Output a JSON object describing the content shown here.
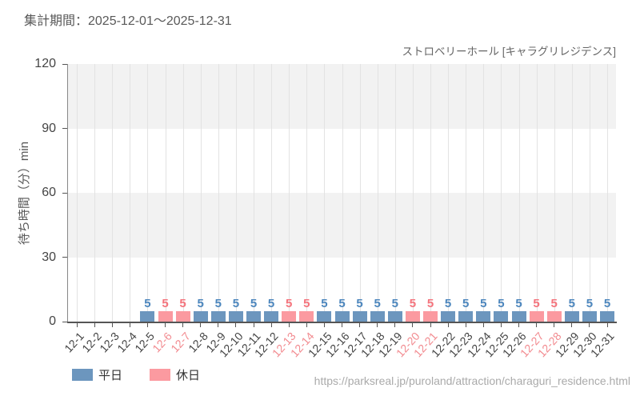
{
  "header": {
    "title": "集計期間：2025-12-01～2025-12-31"
  },
  "chart": {
    "subtitle": "ストロベリーホール [キャラグリレジデンス]",
    "ylabel": "待ち時間（分）min"
  },
  "legend": [
    {
      "label": "平日",
      "type": "weekday"
    },
    {
      "label": "休日",
      "type": "weekend"
    }
  ],
  "footer": {
    "url": "https://parksreal.jp/puroland/attraction/charaguri_residence.html"
  },
  "chart_data": {
    "type": "bar",
    "title": "ストロベリーホール [キャラグリレジデンス]",
    "xlabel": "",
    "ylabel": "待ち時間（分）min",
    "ylim": [
      0,
      120
    ],
    "yticks": [
      0,
      30,
      60,
      90,
      120
    ],
    "grid": "vertical-lines with alternating horizontal gray bands",
    "legend_position": "bottom-left",
    "categories": [
      "12-1",
      "12-2",
      "12-3",
      "12-4",
      "12-5",
      "12-6",
      "12-7",
      "12-8",
      "12-9",
      "12-10",
      "12-11",
      "12-12",
      "12-13",
      "12-14",
      "12-15",
      "12-16",
      "12-17",
      "12-18",
      "12-19",
      "12-20",
      "12-21",
      "12-22",
      "12-23",
      "12-24",
      "12-25",
      "12-26",
      "12-27",
      "12-28",
      "12-29",
      "12-30",
      "12-31"
    ],
    "values": [
      null,
      null,
      null,
      null,
      5,
      5,
      5,
      5,
      5,
      5,
      5,
      5,
      5,
      5,
      5,
      5,
      5,
      5,
      5,
      5,
      5,
      5,
      5,
      5,
      5,
      5,
      5,
      5,
      5,
      5,
      5
    ],
    "day_types": [
      "weekday",
      "weekday",
      "weekday",
      "weekday",
      "weekday",
      "weekend",
      "weekend",
      "weekday",
      "weekday",
      "weekday",
      "weekday",
      "weekday",
      "weekend",
      "weekend",
      "weekday",
      "weekday",
      "weekday",
      "weekday",
      "weekday",
      "weekend",
      "weekend",
      "weekday",
      "weekday",
      "weekday",
      "weekday",
      "weekday",
      "weekend",
      "weekend",
      "weekday",
      "weekday",
      "weekday"
    ],
    "colors": {
      "weekday_bar": "#6c96be",
      "weekend_bar": "#fb9aa0",
      "weekday_value_label": "#4c86bd",
      "weekend_value_label": "#f4737c",
      "weekday_tick_label": "#444444",
      "weekend_tick_label": "#f28b90",
      "band_fill": "#f2f2f2",
      "gridline": "#e3e3e3",
      "axis": "#555555"
    }
  }
}
